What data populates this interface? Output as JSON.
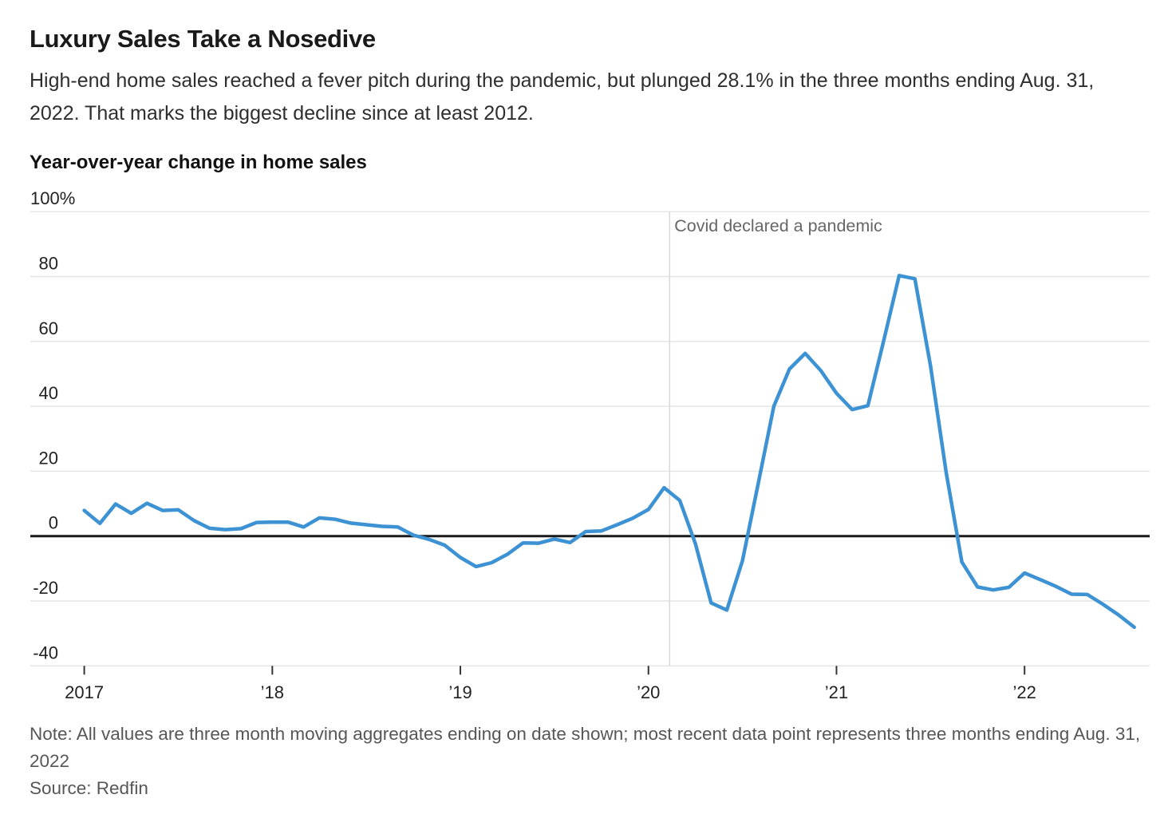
{
  "header": {
    "title": "Luxury Sales Take a Nosedive",
    "subtitle": "High-end home sales reached a fever pitch during the pandemic, but plunged 28.1% in the three months ending Aug. 31, 2022. That marks the biggest decline since at least 2012."
  },
  "chart_label": "Year-over-year change in home sales",
  "chart_data": {
    "type": "line",
    "title": "Year-over-year change in home sales",
    "unit": "percent",
    "series_name": "Year-over-year change in home sales",
    "x": [
      "2017-01",
      "2017-02",
      "2017-03",
      "2017-04",
      "2017-05",
      "2017-06",
      "2017-07",
      "2017-08",
      "2017-09",
      "2017-10",
      "2017-11",
      "2017-12",
      "2018-01",
      "2018-02",
      "2018-03",
      "2018-04",
      "2018-05",
      "2018-06",
      "2018-07",
      "2018-08",
      "2018-09",
      "2018-10",
      "2018-11",
      "2018-12",
      "2019-01",
      "2019-02",
      "2019-03",
      "2019-04",
      "2019-05",
      "2019-06",
      "2019-07",
      "2019-08",
      "2019-09",
      "2019-10",
      "2019-11",
      "2019-12",
      "2020-01",
      "2020-02",
      "2020-03",
      "2020-04",
      "2020-05",
      "2020-06",
      "2020-07",
      "2020-08",
      "2020-09",
      "2020-10",
      "2020-11",
      "2020-12",
      "2021-01",
      "2021-02",
      "2021-03",
      "2021-04",
      "2021-05",
      "2021-06",
      "2021-07",
      "2021-08",
      "2021-09",
      "2021-10",
      "2021-11",
      "2021-12",
      "2022-01",
      "2022-02",
      "2022-03",
      "2022-04",
      "2022-05",
      "2022-06",
      "2022-07",
      "2022-08"
    ],
    "values": [
      7.9,
      3.9,
      9.9,
      7,
      10.1,
      7.9,
      8.1,
      4.8,
      2.4,
      2,
      2.3,
      4.2,
      4.3,
      4.3,
      2.8,
      5.6,
      5.2,
      4,
      3.5,
      3,
      2.8,
      0.3,
      -1,
      -2.8,
      -6.6,
      -9.4,
      -8.2,
      -5.6,
      -2.1,
      -2.2,
      -0.9,
      -2,
      1.4,
      1.6,
      3.5,
      5.5,
      8.2,
      14.9,
      11,
      -2.4,
      -20.6,
      -22.8,
      -7.6,
      16,
      40,
      51.5,
      56.3,
      51,
      44,
      39,
      40.2,
      60,
      80.3,
      79.3,
      52.5,
      19.5,
      -8,
      -15.7,
      -16.6,
      -15.8,
      -11.4,
      -13.4,
      -15.5,
      -17.9,
      -18,
      -21,
      -24.3,
      -28.1
    ],
    "ylim": [
      -45,
      105
    ],
    "yticks": [
      {
        "value": 100,
        "label": "100%"
      },
      {
        "value": 80,
        "label": "80"
      },
      {
        "value": 60,
        "label": "60"
      },
      {
        "value": 40,
        "label": "40"
      },
      {
        "value": 20,
        "label": "20"
      },
      {
        "value": 0,
        "label": "0"
      },
      {
        "value": -20,
        "label": "-20"
      },
      {
        "value": -40,
        "label": "-40"
      }
    ],
    "xticks": [
      {
        "label": "2017",
        "month_index": 0
      },
      {
        "label": "’18",
        "month_index": 12
      },
      {
        "label": "’19",
        "month_index": 24
      },
      {
        "label": "’20",
        "month_index": 36
      },
      {
        "label": "’21",
        "month_index": 48
      },
      {
        "label": "’22",
        "month_index": 60
      }
    ],
    "annotation": {
      "label": "Covid declared a pandemic",
      "x_month_index": 37.35
    },
    "line_color": "#3d92d3",
    "grid_color": "#e4e4e4",
    "zero_line_color": "#1b1b1b",
    "annotation_line_color": "#d9d9d9",
    "grid": true,
    "legend": false
  },
  "footer": {
    "note": "Note: All values are three month moving aggregates ending on date shown; most recent data point represents three months ending Aug. 31, 2022",
    "source": "Source: Redfin"
  }
}
